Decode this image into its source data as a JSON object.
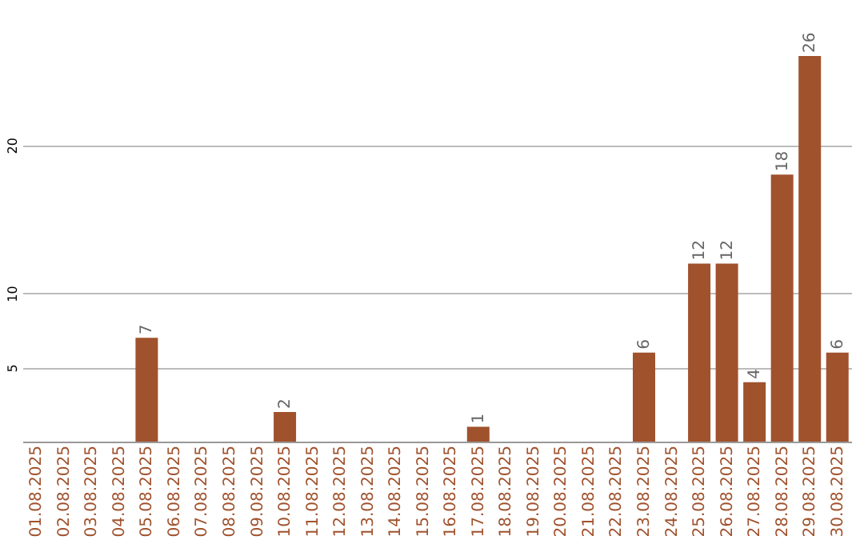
{
  "chart_data": {
    "type": "bar",
    "categories": [
      "01.08.2025",
      "02.08.2025",
      "03.08.2025",
      "04.08.2025",
      "05.08.2025",
      "06.08.2025",
      "07.08.2025",
      "08.08.2025",
      "09.08.2025",
      "10.08.2025",
      "11.08.2025",
      "12.08.2025",
      "13.08.2025",
      "14.08.2025",
      "15.08.2025",
      "16.08.2025",
      "17.08.2025",
      "18.08.2025",
      "19.08.2025",
      "20.08.2025",
      "21.08.2025",
      "22.08.2025",
      "23.08.2025",
      "24.08.2025",
      "25.08.2025",
      "26.08.2025",
      "27.08.2025",
      "28.08.2025",
      "29.08.2025",
      "30.08.2025"
    ],
    "values": [
      0,
      0,
      0,
      0,
      7,
      0,
      0,
      0,
      0,
      2,
      0,
      0,
      0,
      0,
      0,
      0,
      1,
      0,
      0,
      0,
      0,
      0,
      6,
      0,
      12,
      12,
      4,
      18,
      26,
      6
    ],
    "value_labels": [
      null,
      null,
      null,
      null,
      "7",
      null,
      null,
      null,
      null,
      "2",
      null,
      null,
      null,
      null,
      null,
      null,
      "1",
      null,
      null,
      null,
      null,
      null,
      "6",
      null,
      "12",
      "12",
      "4",
      "18",
      "26",
      "6"
    ],
    "color": "#a0522d",
    "ylim": [
      0,
      26
    ],
    "yticks": [
      5,
      10,
      20
    ],
    "grid": "y"
  }
}
